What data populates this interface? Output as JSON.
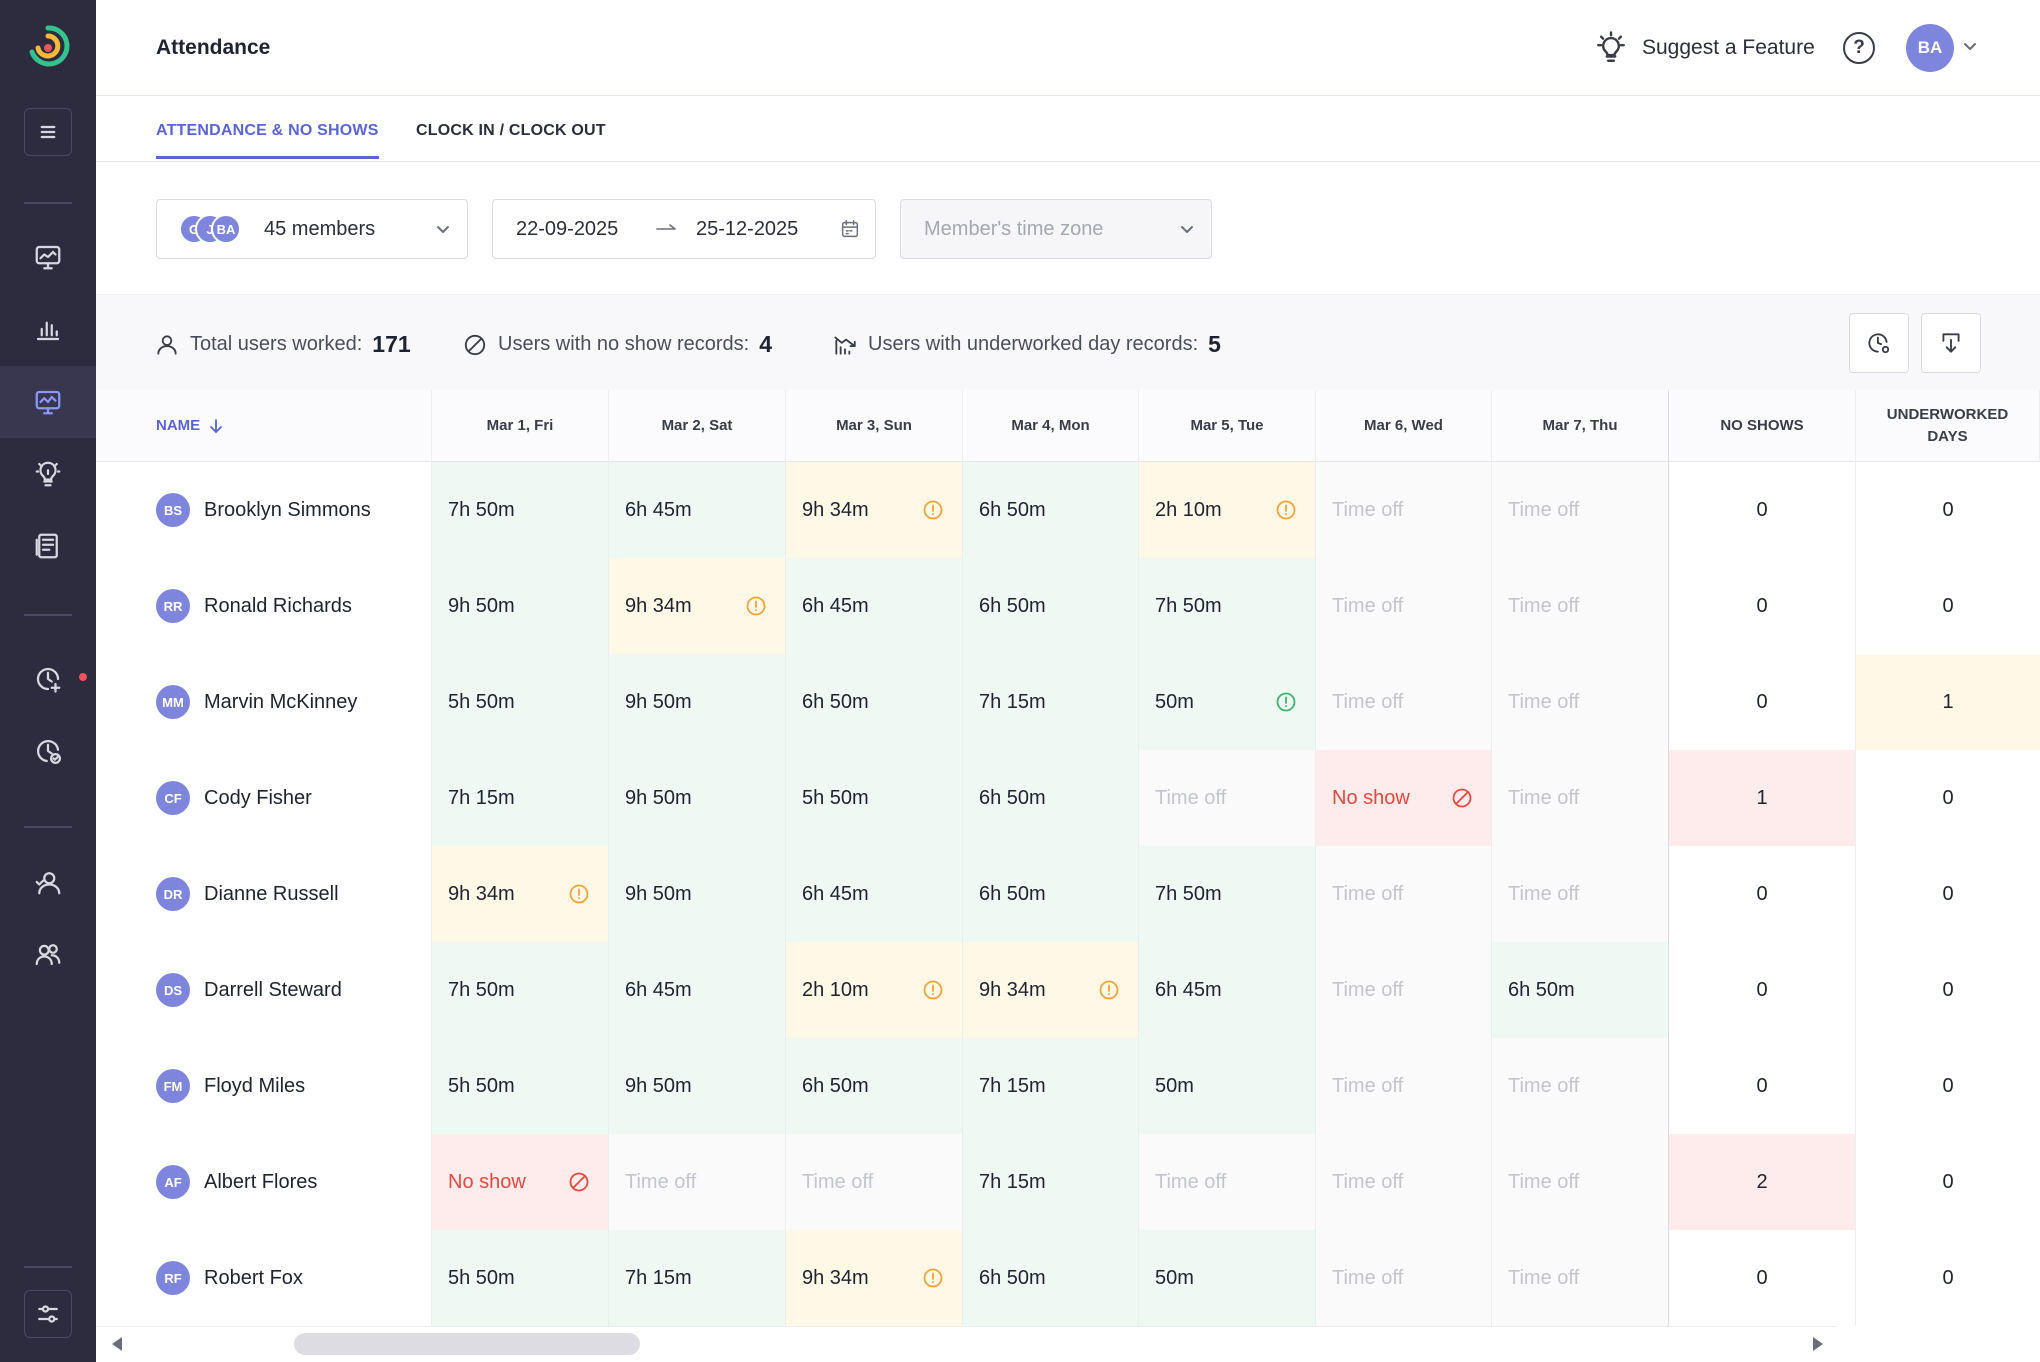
{
  "header": {
    "title": "Attendance",
    "suggest_label": "Suggest a Feature",
    "help_icon": "question-circle-icon",
    "user_initials": "BA"
  },
  "sidebar": {
    "items": [
      {
        "name": "menu",
        "icon": "hamburger-icon"
      },
      {
        "name": "dashboard",
        "icon": "monitor-chart-icon"
      },
      {
        "name": "reports",
        "icon": "bar-chart-icon"
      },
      {
        "name": "activity",
        "icon": "monitor-activity-icon",
        "active": true
      },
      {
        "name": "insights",
        "icon": "lightbulb-icon"
      },
      {
        "name": "projects",
        "icon": "document-icon"
      },
      {
        "name": "time-add",
        "icon": "clock-plus-icon",
        "notification": true
      },
      {
        "name": "time-approve",
        "icon": "clock-check-icon"
      },
      {
        "name": "members",
        "icon": "user-icon"
      },
      {
        "name": "teams",
        "icon": "users-icon"
      },
      {
        "name": "settings",
        "icon": "sliders-icon"
      }
    ]
  },
  "tabs": [
    {
      "label": "ATTENDANCE & NO SHOWS",
      "active": true
    },
    {
      "label": "CLOCK IN / CLOCK OUT",
      "active": false
    }
  ],
  "filters": {
    "members": {
      "label": "45 members",
      "avatars": [
        "G",
        "J",
        "BA"
      ]
    },
    "date_from": "22-09-2025",
    "date_to": "25-12-2025",
    "timezone_placeholder": "Member's time zone"
  },
  "summary": {
    "total_label": "Total users worked:",
    "total_value": "171",
    "noshow_label": "Users with no show records:",
    "noshow_value": "4",
    "underworked_label": "Users with underworked day records:",
    "underworked_value": "5"
  },
  "table": {
    "name_header": "NAME",
    "days": [
      "Mar 1, Fri",
      "Mar 2, Sat",
      "Mar 3, Sun",
      "Mar 4, Mon",
      "Mar 5, Tue",
      "Mar 6, Wed",
      "Mar 7, Thu"
    ],
    "no_shows_header": "NO SHOWS",
    "underworked_header_line1": "UNDERWORKED",
    "underworked_header_line2": "DAYS",
    "rows": [
      {
        "initials": "BS",
        "name": "Brooklyn Simmons",
        "no_shows": "0",
        "underworked": "0",
        "cells": [
          {
            "t": "7h 50m",
            "s": "worked"
          },
          {
            "t": "6h 45m",
            "s": "worked"
          },
          {
            "t": "9h 34m",
            "s": "warn",
            "icon": "warn"
          },
          {
            "t": "6h 50m",
            "s": "worked"
          },
          {
            "t": "2h 10m",
            "s": "warn",
            "icon": "warn"
          },
          {
            "t": "Time off",
            "s": "timeoff"
          },
          {
            "t": "Time off",
            "s": "timeoff"
          }
        ]
      },
      {
        "initials": "RR",
        "name": "Ronald Richards",
        "no_shows": "0",
        "underworked": "0",
        "cells": [
          {
            "t": "9h 50m",
            "s": "worked"
          },
          {
            "t": "9h 34m",
            "s": "warn",
            "icon": "warn"
          },
          {
            "t": "6h 45m",
            "s": "worked"
          },
          {
            "t": "6h 50m",
            "s": "worked"
          },
          {
            "t": "7h 50m",
            "s": "worked"
          },
          {
            "t": "Time off",
            "s": "timeoff"
          },
          {
            "t": "Time off",
            "s": "timeoff"
          }
        ]
      },
      {
        "initials": "MM",
        "name": "Marvin McKinney",
        "no_shows": "0",
        "underworked": "1",
        "underworked_flag": "yellow",
        "cells": [
          {
            "t": "5h 50m",
            "s": "worked"
          },
          {
            "t": "9h 50m",
            "s": "worked"
          },
          {
            "t": "6h 50m",
            "s": "worked"
          },
          {
            "t": "7h 15m",
            "s": "worked"
          },
          {
            "t": "50m",
            "s": "worked",
            "icon": "ok"
          },
          {
            "t": "Time off",
            "s": "timeoff"
          },
          {
            "t": "Time off",
            "s": "timeoff"
          }
        ]
      },
      {
        "initials": "CF",
        "name": "Cody Fisher",
        "no_shows": "1",
        "no_shows_flag": "red",
        "underworked": "0",
        "cells": [
          {
            "t": "7h 15m",
            "s": "worked"
          },
          {
            "t": "9h 50m",
            "s": "worked"
          },
          {
            "t": "5h 50m",
            "s": "worked"
          },
          {
            "t": "6h 50m",
            "s": "worked"
          },
          {
            "t": "Time off",
            "s": "timeoff"
          },
          {
            "t": "No show",
            "s": "noshow",
            "icon": "ns"
          },
          {
            "t": "Time off",
            "s": "timeoff"
          }
        ]
      },
      {
        "initials": "DR",
        "name": "Dianne Russell",
        "no_shows": "0",
        "underworked": "0",
        "cells": [
          {
            "t": "9h 34m",
            "s": "warn",
            "icon": "warn"
          },
          {
            "t": "9h 50m",
            "s": "worked"
          },
          {
            "t": "6h 45m",
            "s": "worked"
          },
          {
            "t": "6h 50m",
            "s": "worked"
          },
          {
            "t": "7h 50m",
            "s": "worked"
          },
          {
            "t": "Time off",
            "s": "timeoff"
          },
          {
            "t": "Time off",
            "s": "timeoff"
          }
        ]
      },
      {
        "initials": "DS",
        "name": "Darrell Steward",
        "no_shows": "0",
        "underworked": "0",
        "cells": [
          {
            "t": "7h 50m",
            "s": "worked"
          },
          {
            "t": "6h 45m",
            "s": "worked"
          },
          {
            "t": "2h 10m",
            "s": "warn",
            "icon": "warn"
          },
          {
            "t": "9h 34m",
            "s": "warn",
            "icon": "warn"
          },
          {
            "t": "6h 45m",
            "s": "worked"
          },
          {
            "t": "Time off",
            "s": "timeoff"
          },
          {
            "t": "6h 50m",
            "s": "worked"
          }
        ]
      },
      {
        "initials": "FM",
        "name": "Floyd Miles",
        "no_shows": "0",
        "underworked": "0",
        "cells": [
          {
            "t": "5h 50m",
            "s": "worked"
          },
          {
            "t": "9h 50m",
            "s": "worked"
          },
          {
            "t": "6h 50m",
            "s": "worked"
          },
          {
            "t": "7h 15m",
            "s": "worked"
          },
          {
            "t": "50m",
            "s": "worked"
          },
          {
            "t": "Time off",
            "s": "timeoff"
          },
          {
            "t": "Time off",
            "s": "timeoff"
          }
        ]
      },
      {
        "initials": "AF",
        "name": "Albert Flores",
        "no_shows": "2",
        "no_shows_flag": "red",
        "underworked": "0",
        "cells": [
          {
            "t": "No show",
            "s": "noshow",
            "icon": "ns"
          },
          {
            "t": "Time off",
            "s": "timeoff"
          },
          {
            "t": "Time off",
            "s": "timeoff"
          },
          {
            "t": "7h 15m",
            "s": "worked"
          },
          {
            "t": "Time off",
            "s": "timeoff"
          },
          {
            "t": "Time off",
            "s": "timeoff"
          },
          {
            "t": "Time off",
            "s": "timeoff"
          }
        ]
      },
      {
        "initials": "RF",
        "name": "Robert Fox",
        "no_shows": "0",
        "underworked": "0",
        "cells": [
          {
            "t": "5h 50m",
            "s": "worked"
          },
          {
            "t": "7h 15m",
            "s": "worked"
          },
          {
            "t": "9h 34m",
            "s": "warn",
            "icon": "warn"
          },
          {
            "t": "6h 50m",
            "s": "worked"
          },
          {
            "t": "50m",
            "s": "worked"
          },
          {
            "t": "Time off",
            "s": "timeoff"
          },
          {
            "t": "Time off",
            "s": "timeoff"
          }
        ]
      }
    ]
  },
  "colors": {
    "accent": "#5b64d6",
    "sidebar": "#2d2c3e",
    "worked_bg": "#eef9f4",
    "warn_bg": "#fff8e6",
    "noshow_bg": "#fdeceb",
    "noshow_text": "#e4493f"
  }
}
